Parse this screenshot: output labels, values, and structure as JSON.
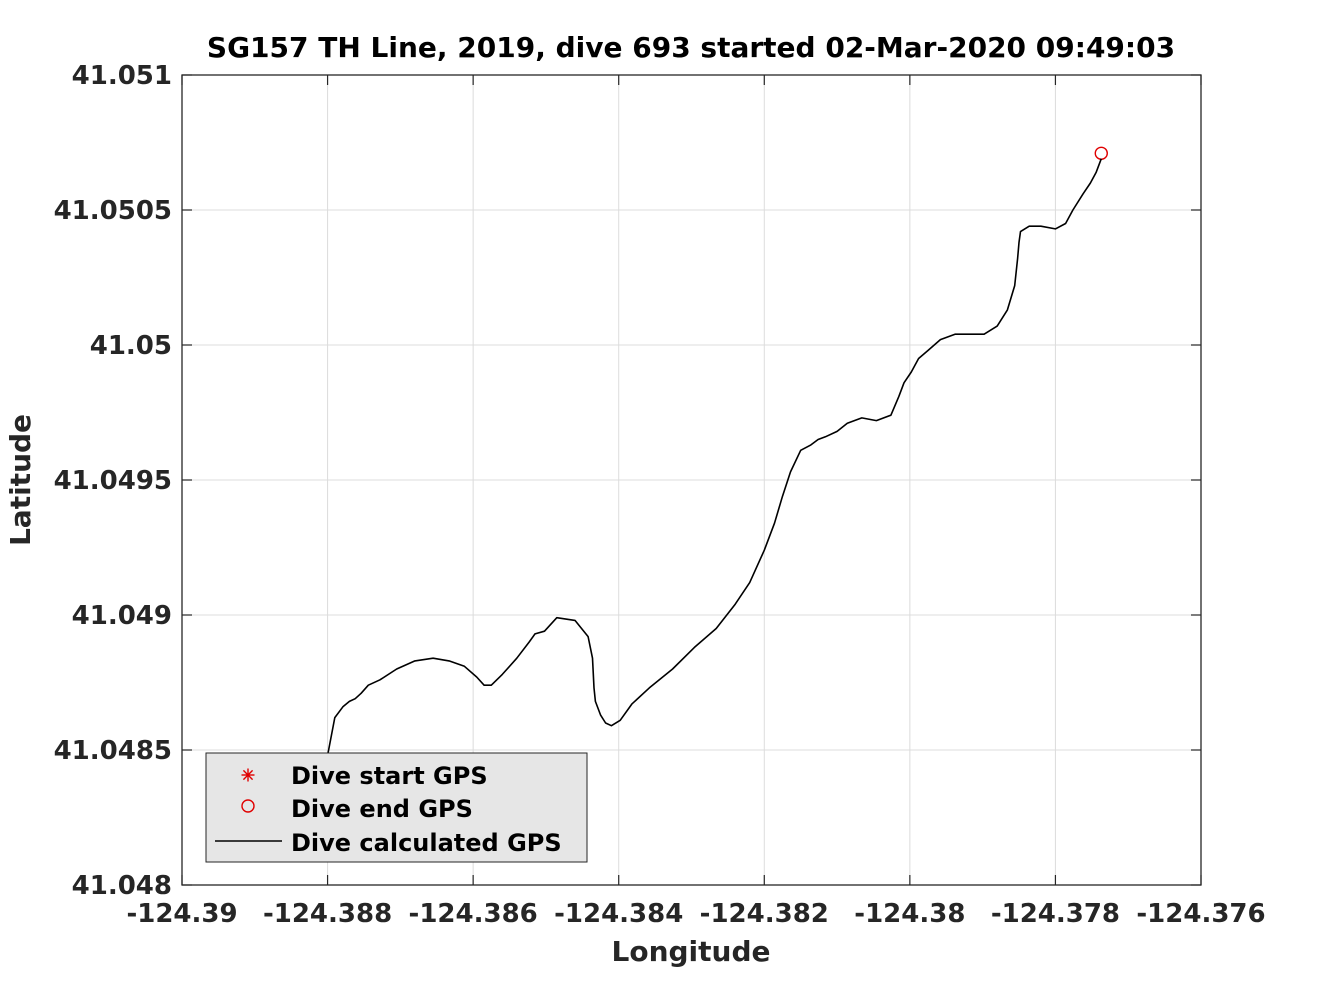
{
  "chart_data": {
    "type": "line",
    "title": "SG157 TH Line, 2019, dive 693 started 02-Mar-2020 09:49:03",
    "xlabel": "Longitude",
    "ylabel": "Latitude",
    "xlim": [
      -124.39,
      -124.376
    ],
    "ylim": [
      41.048,
      41.051
    ],
    "xticks": [
      -124.39,
      -124.388,
      -124.386,
      -124.384,
      -124.382,
      -124.38,
      -124.378,
      -124.376
    ],
    "xtick_labels": [
      "-124.39",
      "-124.388",
      "-124.386",
      "-124.384",
      "-124.382",
      "-124.38",
      "-124.378",
      "-124.376"
    ],
    "yticks": [
      41.048,
      41.0485,
      41.049,
      41.0495,
      41.05,
      41.0505,
      41.051
    ],
    "ytick_labels": [
      "41.048",
      "41.0485",
      "41.049",
      "41.0495",
      "41.05",
      "41.0505",
      "41.051"
    ],
    "grid": true,
    "legend_position": "bottom-left",
    "colors": {
      "markers": "#e00000",
      "line": "#000000",
      "grid": "#dcdcdc",
      "legend_bg": "#e6e6e6"
    },
    "series": [
      {
        "name": "Dive start GPS",
        "style": "star-marker",
        "x": [
          -124.38911
        ],
        "y": [
          41.04812
        ]
      },
      {
        "name": "Dive end GPS",
        "style": "circle-marker",
        "x": [
          -124.37737
        ],
        "y": [
          41.05071
        ]
      },
      {
        "name": "Dive calculated GPS",
        "style": "line",
        "x": [
          -124.38904,
          -124.38914,
          -124.38919,
          -124.38921,
          -124.3892,
          -124.38913,
          -124.38904,
          -124.38892,
          -124.38876,
          -124.38855,
          -124.3883,
          -124.38809,
          -124.388,
          -124.3879,
          -124.38779,
          -124.3877,
          -124.38762,
          -124.38754,
          -124.38744,
          -124.38728,
          -124.38705,
          -124.3868,
          -124.38655,
          -124.38633,
          -124.38612,
          -124.38595,
          -124.38585,
          -124.38575,
          -124.3856,
          -124.3854,
          -124.38523,
          -124.38515,
          -124.38502,
          -124.38485,
          -124.3846,
          -124.38442,
          -124.38436,
          -124.38434,
          -124.38432,
          -124.38425,
          -124.38418,
          -124.3841,
          -124.38398,
          -124.38382,
          -124.38358,
          -124.38326,
          -124.38296,
          -124.38266,
          -124.3824,
          -124.3822,
          -124.382,
          -124.38186,
          -124.38175,
          -124.38164,
          -124.3815,
          -124.38136,
          -124.38126,
          -124.38116,
          -124.381,
          -124.38086,
          -124.38066,
          -124.38046,
          -124.38026,
          -124.38015,
          -124.38008,
          -124.37998,
          -124.37988,
          -124.37975,
          -124.37958,
          -124.37938,
          -124.37918,
          -124.37898,
          -124.3788,
          -124.37866,
          -124.37856,
          -124.37852,
          -124.3785,
          -124.37848,
          -124.37836,
          -124.3782,
          -124.378,
          -124.37786,
          -124.37776,
          -124.37762,
          -124.37752,
          -124.37744,
          -124.37737
        ],
        "y": [
          41.04809,
          41.04814,
          41.04822,
          41.0483,
          41.04838,
          41.04843,
          41.04844,
          41.04845,
          41.04844,
          41.04842,
          41.0484,
          41.04835,
          41.04848,
          41.04862,
          41.04866,
          41.04868,
          41.04869,
          41.04871,
          41.04874,
          41.04876,
          41.0488,
          41.04883,
          41.04884,
          41.04883,
          41.04881,
          41.04877,
          41.04874,
          41.04874,
          41.04878,
          41.04884,
          41.0489,
          41.04893,
          41.04894,
          41.04899,
          41.04898,
          41.04892,
          41.04884,
          41.04873,
          41.04868,
          41.04863,
          41.0486,
          41.04859,
          41.04861,
          41.04867,
          41.04873,
          41.0488,
          41.04888,
          41.04895,
          41.04904,
          41.04912,
          41.04924,
          41.04934,
          41.04944,
          41.04953,
          41.04961,
          41.04963,
          41.04965,
          41.04966,
          41.04968,
          41.04971,
          41.04973,
          41.04972,
          41.04974,
          41.04981,
          41.04986,
          41.0499,
          41.04995,
          41.04998,
          41.05002,
          41.05004,
          41.05004,
          41.05004,
          41.05007,
          41.05013,
          41.05022,
          41.05032,
          41.05038,
          41.05042,
          41.05044,
          41.05044,
          41.05043,
          41.05045,
          41.0505,
          41.05056,
          41.0506,
          41.05064,
          41.05069
        ]
      }
    ],
    "legend_entries": [
      "Dive start GPS",
      "Dive end GPS",
      "Dive calculated GPS"
    ]
  }
}
